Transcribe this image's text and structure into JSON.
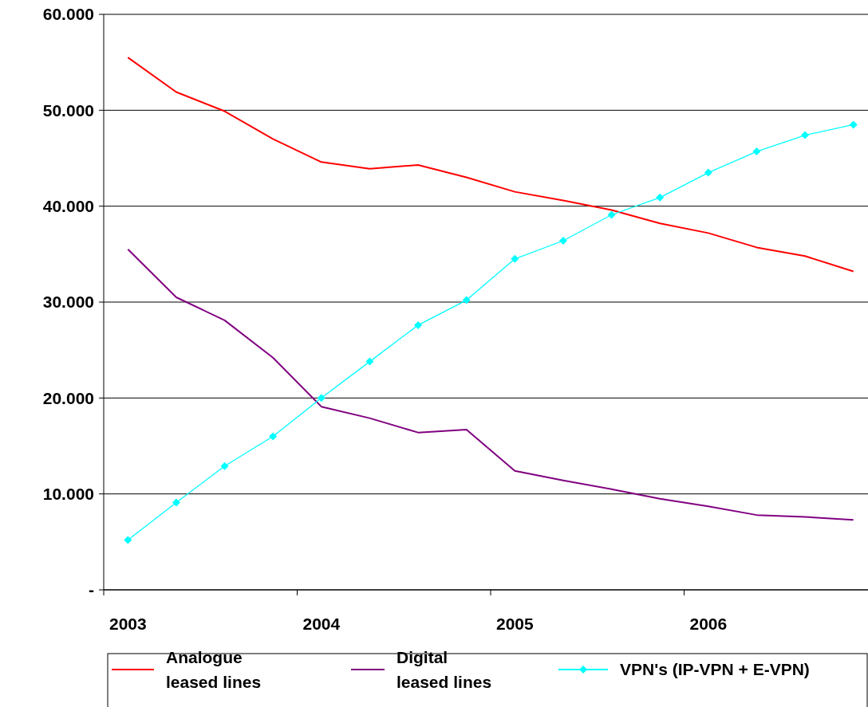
{
  "chart_data": {
    "type": "line",
    "categories": [
      "2003",
      null,
      null,
      null,
      "2004",
      null,
      null,
      null,
      "2005",
      null,
      null,
      null,
      "2006",
      null,
      null,
      null
    ],
    "ylim": [
      0,
      60000
    ],
    "yticks": [
      {
        "value": 0,
        "label": "-"
      },
      {
        "value": 10000,
        "label": "10.000"
      },
      {
        "value": 20000,
        "label": "20.000"
      },
      {
        "value": 30000,
        "label": "30.000"
      },
      {
        "value": 40000,
        "label": "40.000"
      },
      {
        "value": 50000,
        "label": "50.000"
      },
      {
        "value": 60000,
        "label": "60.000"
      }
    ],
    "grid": "y",
    "legend": "bottom",
    "series": [
      {
        "name": "Analogue leased lines",
        "color": "#ff0000",
        "marker": "none",
        "values": [
          55500,
          51900,
          49900,
          47000,
          44600,
          43900,
          44300,
          43000,
          41500,
          40600,
          39600,
          38200,
          37200,
          35700,
          34800,
          33200
        ]
      },
      {
        "name": "Digital leased lines",
        "color": "#800080",
        "marker": "none",
        "values": [
          35500,
          30500,
          28100,
          24200,
          19100,
          17900,
          16400,
          16700,
          12400,
          11400,
          10500,
          9500,
          8700,
          7800,
          7600,
          7300
        ]
      },
      {
        "name": "VPN's (IP-VPN + E-VPN)",
        "color": "#00ffff",
        "marker": "diamond",
        "values": [
          5200,
          9100,
          12900,
          16000,
          20000,
          23800,
          27600,
          30200,
          34500,
          36400,
          39100,
          40900,
          43500,
          45700,
          47400,
          48500
        ]
      }
    ]
  }
}
